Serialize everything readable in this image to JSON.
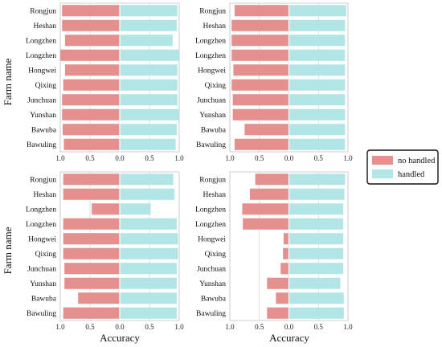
{
  "colors": {
    "no_handled": "#e3908f",
    "handled": "#b2e6e6",
    "frame": "#cfcfcf",
    "grid": "#c8c8c8"
  },
  "labels": {
    "ylabel": "Farm name",
    "xlabel": "Accuracy"
  },
  "legend": {
    "items": [
      "no handled",
      "handled"
    ],
    "placement": "right"
  },
  "chart_data": [
    {
      "type": "bar",
      "orientation": "horizontal-diverging",
      "categories": [
        "Rongjun",
        "Heshan",
        "Longzhen",
        "Longzhen",
        "Hongwei",
        "Qixing",
        "Junchuan",
        "Yunshan",
        "Bawuba",
        "Bawuling"
      ],
      "series": [
        {
          "name": "no handled",
          "values": [
            0.97,
            0.97,
            0.92,
            1.0,
            0.92,
            0.95,
            0.97,
            0.97,
            0.96,
            0.94
          ]
        },
        {
          "name": "handled",
          "values": [
            0.97,
            0.96,
            0.89,
            1.0,
            0.97,
            0.97,
            0.97,
            1.0,
            0.96,
            0.94
          ]
        }
      ],
      "xticks": [
        "1.0",
        "0.5",
        "0.0",
        "0.5",
        "1.0"
      ],
      "xlim": [
        -1,
        1
      ],
      "ylabel": "Farm name",
      "xlabel": ""
    },
    {
      "type": "bar",
      "orientation": "horizontal-diverging",
      "categories": [
        "Rongjun",
        "Heshan",
        "Longzhen",
        "Longzhen",
        "Hongwei",
        "Qixing",
        "Junchuan",
        "Yunshan",
        "Bawuba",
        "Bawuling"
      ],
      "series": [
        {
          "name": "no handled",
          "values": [
            0.92,
            0.97,
            0.97,
            0.97,
            0.94,
            0.97,
            0.95,
            0.95,
            0.75,
            0.92
          ]
        },
        {
          "name": "handled",
          "values": [
            0.97,
            0.95,
            0.95,
            0.95,
            0.95,
            0.95,
            0.95,
            0.95,
            0.95,
            0.95
          ]
        }
      ],
      "xticks": [
        "1.0",
        "0.5",
        "0.0",
        "0.5",
        "1.0"
      ],
      "xlim": [
        -1,
        1
      ],
      "ylabel": "",
      "xlabel": ""
    },
    {
      "type": "bar",
      "orientation": "horizontal-diverging",
      "categories": [
        "Rongjun",
        "Heshan",
        "Longzhen",
        "Longzhen",
        "Hongwei",
        "Qixing",
        "Junchuan",
        "Yunshan",
        "Bawuba",
        "Bawuling"
      ],
      "series": [
        {
          "name": "no handled",
          "values": [
            0.95,
            0.95,
            0.47,
            0.95,
            0.95,
            0.95,
            0.93,
            0.93,
            0.7,
            0.95
          ]
        },
        {
          "name": "handled",
          "values": [
            0.9,
            0.92,
            0.52,
            0.96,
            0.98,
            0.98,
            0.96,
            0.96,
            0.96,
            0.96
          ]
        }
      ],
      "xticks": [
        "1.0",
        "0.5",
        "0.0",
        "0.5",
        "1.0"
      ],
      "xlim": [
        -1,
        1
      ],
      "ylabel": "Farm name",
      "xlabel": "Accuracy"
    },
    {
      "type": "bar",
      "orientation": "horizontal-diverging",
      "categories": [
        "Rongjun",
        "Heshan",
        "Longzhen",
        "Longzhen",
        "Hongwei",
        "Qixing",
        "Junchuan",
        "Yunshan",
        "Bawuba",
        "Bawuling"
      ],
      "series": [
        {
          "name": "no handled",
          "values": [
            0.57,
            0.66,
            0.79,
            0.78,
            0.09,
            0.1,
            0.14,
            0.37,
            0.22,
            0.37
          ]
        },
        {
          "name": "handled",
          "values": [
            0.95,
            0.94,
            0.92,
            0.92,
            0.92,
            0.92,
            0.92,
            0.87,
            0.93,
            0.93
          ]
        }
      ],
      "xticks": [
        "1.0",
        "0.5",
        "0.0",
        "0.5",
        "1.0"
      ],
      "xlim": [
        -1,
        1
      ],
      "ylabel": "",
      "xlabel": "Accuracy"
    }
  ]
}
